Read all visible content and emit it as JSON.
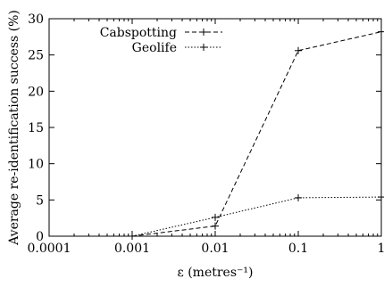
{
  "chart_data": {
    "type": "line",
    "xscale": "log",
    "x": [
      0.001,
      0.01,
      0.1,
      1
    ],
    "xlim": [
      0.0001,
      1
    ],
    "ylim": [
      0,
      30
    ],
    "xticks": [
      0.0001,
      0.001,
      0.01,
      0.1,
      1
    ],
    "xtick_labels": [
      "0.0001",
      "0.001",
      "0.01",
      "0.1",
      "1"
    ],
    "yticks": [
      0,
      5,
      10,
      15,
      20,
      25,
      30
    ],
    "ytick_labels": [
      "0",
      "5",
      "10",
      "15",
      "20",
      "25",
      "30"
    ],
    "xlabel": "ε (metres⁻¹)",
    "ylabel": "Average re-identification success (%)",
    "grid": false,
    "legend_position": "top-left",
    "series": [
      {
        "name": "Cabspotting",
        "values": [
          0,
          1.4,
          25.6,
          28.2
        ],
        "dash": "dashed",
        "color": "#000000"
      },
      {
        "name": "Geolife",
        "values": [
          0,
          2.6,
          5.3,
          5.4
        ],
        "dash": "dotted",
        "color": "#000000"
      }
    ]
  }
}
